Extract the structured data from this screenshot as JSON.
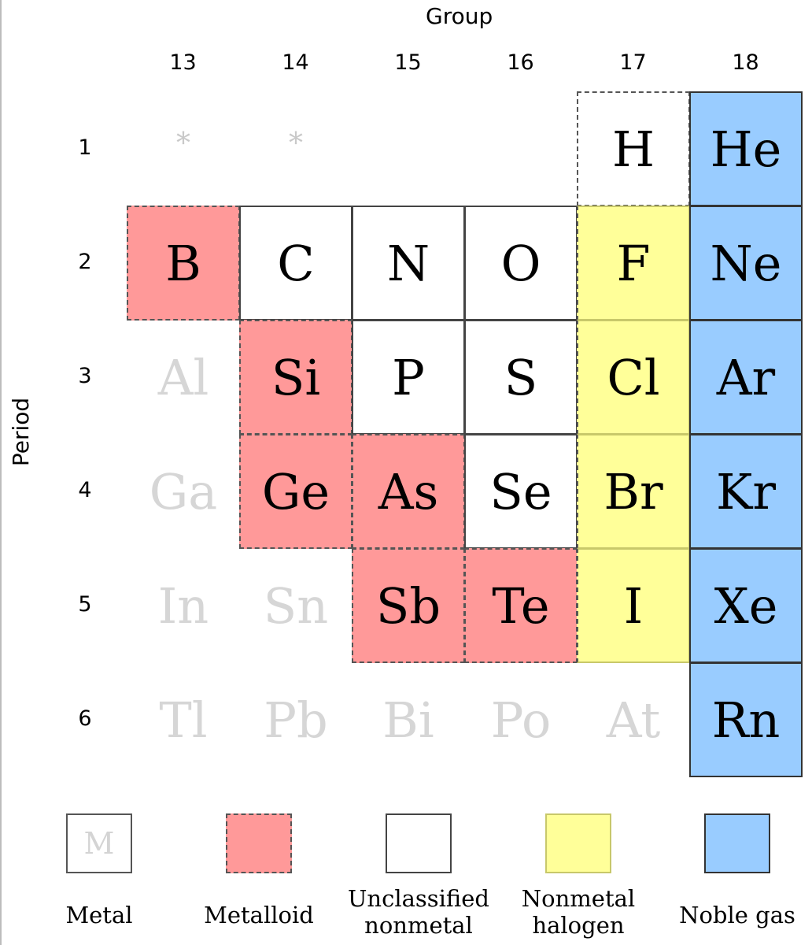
{
  "axis": {
    "group_title": "Group",
    "period_title": "Period"
  },
  "groups": [
    "13",
    "14",
    "15",
    "16",
    "17",
    "18"
  ],
  "periods": [
    "1",
    "2",
    "3",
    "4",
    "5",
    "6"
  ],
  "colors": {
    "metalloid": "#ff9999",
    "unclassified": "#ffffff",
    "halogen": "#ffff99",
    "noble": "#99ccff",
    "ghost_text": "#d6d6d6"
  },
  "elements": [
    {
      "symbol": "*",
      "group": 0,
      "period": 0,
      "category": "placeholder"
    },
    {
      "symbol": "*",
      "group": 1,
      "period": 0,
      "category": "placeholder"
    },
    {
      "symbol": "H",
      "group": 4,
      "period": 0,
      "category": "unclassified"
    },
    {
      "symbol": "He",
      "group": 5,
      "period": 0,
      "category": "noble"
    },
    {
      "symbol": "B",
      "group": 0,
      "period": 1,
      "category": "metalloid"
    },
    {
      "symbol": "C",
      "group": 1,
      "period": 1,
      "category": "unclassified"
    },
    {
      "symbol": "N",
      "group": 2,
      "period": 1,
      "category": "unclassified"
    },
    {
      "symbol": "O",
      "group": 3,
      "period": 1,
      "category": "unclassified"
    },
    {
      "symbol": "F",
      "group": 4,
      "period": 1,
      "category": "halogen"
    },
    {
      "symbol": "Ne",
      "group": 5,
      "period": 1,
      "category": "noble"
    },
    {
      "symbol": "Al",
      "group": 0,
      "period": 2,
      "category": "metal"
    },
    {
      "symbol": "Si",
      "group": 1,
      "period": 2,
      "category": "metalloid"
    },
    {
      "symbol": "P",
      "group": 2,
      "period": 2,
      "category": "unclassified"
    },
    {
      "symbol": "S",
      "group": 3,
      "period": 2,
      "category": "unclassified"
    },
    {
      "symbol": "Cl",
      "group": 4,
      "period": 2,
      "category": "halogen"
    },
    {
      "symbol": "Ar",
      "group": 5,
      "period": 2,
      "category": "noble"
    },
    {
      "symbol": "Ga",
      "group": 0,
      "period": 3,
      "category": "metal"
    },
    {
      "symbol": "Ge",
      "group": 1,
      "period": 3,
      "category": "metalloid"
    },
    {
      "symbol": "As",
      "group": 2,
      "period": 3,
      "category": "metalloid"
    },
    {
      "symbol": "Se",
      "group": 3,
      "period": 3,
      "category": "unclassified"
    },
    {
      "symbol": "Br",
      "group": 4,
      "period": 3,
      "category": "halogen"
    },
    {
      "symbol": "Kr",
      "group": 5,
      "period": 3,
      "category": "noble"
    },
    {
      "symbol": "In",
      "group": 0,
      "period": 4,
      "category": "metal"
    },
    {
      "symbol": "Sn",
      "group": 1,
      "period": 4,
      "category": "metal"
    },
    {
      "symbol": "Sb",
      "group": 2,
      "period": 4,
      "category": "metalloid"
    },
    {
      "symbol": "Te",
      "group": 3,
      "period": 4,
      "category": "metalloid"
    },
    {
      "symbol": "I",
      "group": 4,
      "period": 4,
      "category": "halogen"
    },
    {
      "symbol": "Xe",
      "group": 5,
      "period": 4,
      "category": "noble"
    },
    {
      "symbol": "Tl",
      "group": 0,
      "period": 5,
      "category": "metal"
    },
    {
      "symbol": "Pb",
      "group": 1,
      "period": 5,
      "category": "metal"
    },
    {
      "symbol": "Bi",
      "group": 2,
      "period": 5,
      "category": "metal"
    },
    {
      "symbol": "Po",
      "group": 3,
      "period": 5,
      "category": "metal"
    },
    {
      "symbol": "At",
      "group": 4,
      "period": 5,
      "category": "metal"
    },
    {
      "symbol": "Rn",
      "group": 5,
      "period": 5,
      "category": "noble"
    }
  ],
  "legend": [
    {
      "key": "metal",
      "label": "Metal",
      "swatch_text": "M"
    },
    {
      "key": "metalloid",
      "label": "Metalloid",
      "swatch_text": ""
    },
    {
      "key": "unclassified",
      "label": "Unclassified\nnonmetal",
      "swatch_text": ""
    },
    {
      "key": "halogen",
      "label": "Nonmetal\nhalogen",
      "swatch_text": ""
    },
    {
      "key": "noble",
      "label": "Noble gas",
      "swatch_text": ""
    }
  ]
}
